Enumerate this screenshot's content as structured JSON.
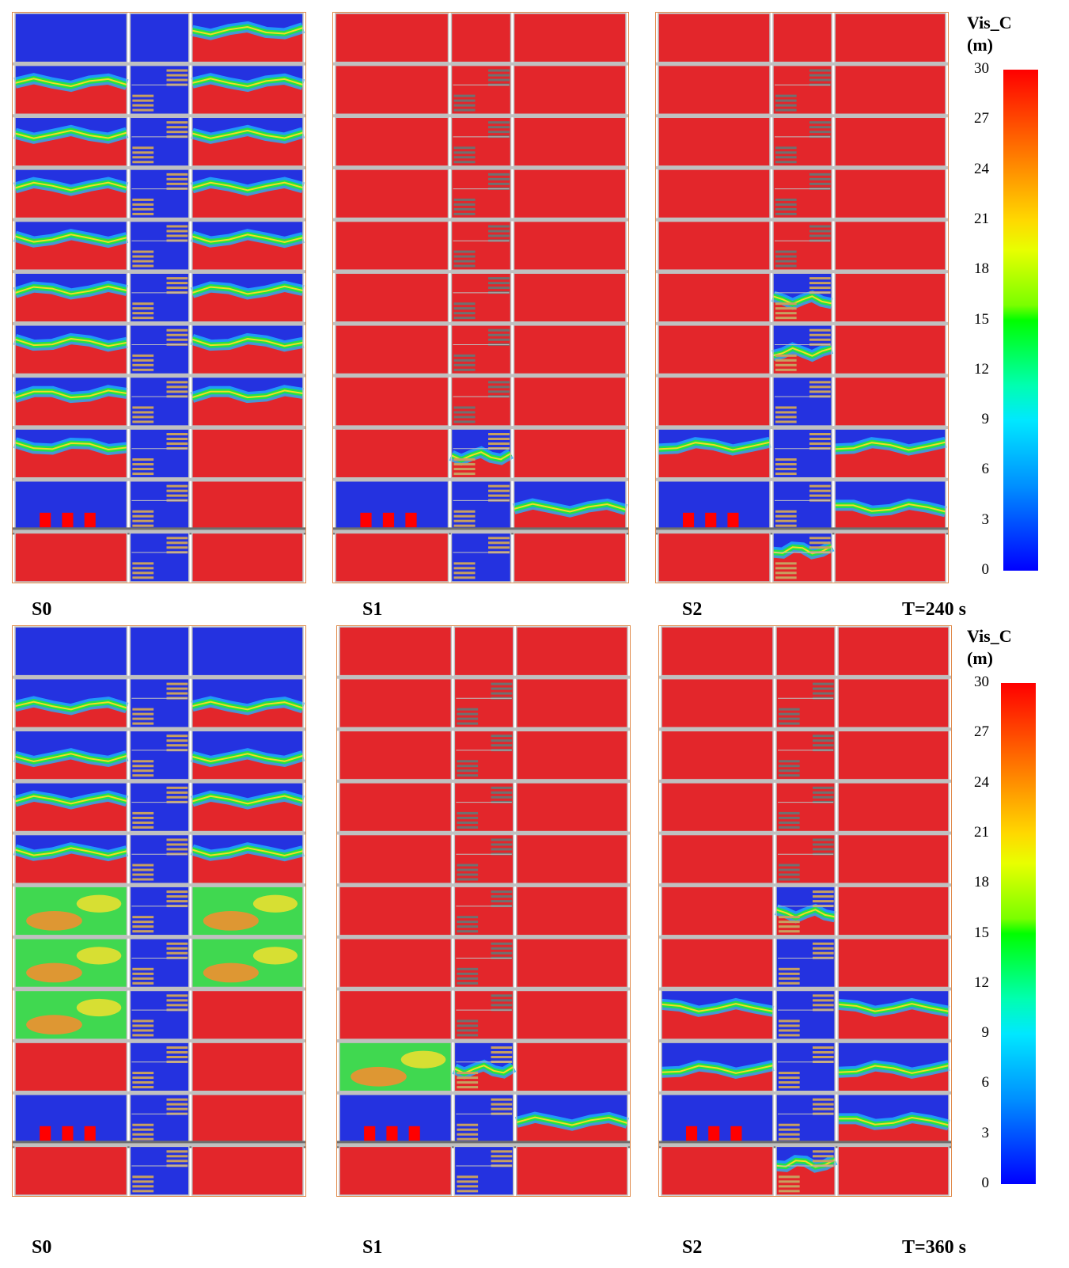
{
  "colors": {
    "smoke_clear": "#e3262b",
    "visible": "#2432e0",
    "fire": "#ff0000",
    "slab": "#6e6e6e",
    "wall": "#c0c0c0",
    "stair": "#c8a060"
  },
  "icons": {
    "fire_source": "fire-source-block-icon",
    "stair": "stair-flight-icon"
  },
  "rows": [
    {
      "time_label": "T=240 s",
      "colorbar": {
        "title_line1": "Vis_C",
        "title_line2": "(m)",
        "ticks": [
          "30",
          "27",
          "24",
          "21",
          "18",
          "15",
          "12",
          "9",
          "6",
          "3",
          "0"
        ]
      },
      "panels": [
        {
          "label": "S0",
          "floors": [
            {
              "L": "blue",
              "S": "blue",
              "R": "mix"
            },
            {
              "L": "mix",
              "S": "blue",
              "R": "mix"
            },
            {
              "L": "mix",
              "S": "blue",
              "R": "mix"
            },
            {
              "L": "mix",
              "S": "blue",
              "R": "mix"
            },
            {
              "L": "mix",
              "S": "blue",
              "R": "mix"
            },
            {
              "L": "mix",
              "S": "blue",
              "R": "mix"
            },
            {
              "L": "mix",
              "S": "blue",
              "R": "mix"
            },
            {
              "L": "mix",
              "S": "blue",
              "R": "mix"
            },
            {
              "L": "mix",
              "S": "blue",
              "R": "red"
            },
            {
              "L": "fire",
              "S": "blue",
              "R": "red"
            },
            {
              "L": "red",
              "S": "blue",
              "R": "red"
            }
          ]
        },
        {
          "label": "S1",
          "floors": [
            {
              "L": "red",
              "S": "red",
              "R": "red"
            },
            {
              "L": "red",
              "S": "red",
              "R": "red"
            },
            {
              "L": "red",
              "S": "red",
              "R": "red"
            },
            {
              "L": "red",
              "S": "red",
              "R": "red"
            },
            {
              "L": "red",
              "S": "red",
              "R": "red"
            },
            {
              "L": "red",
              "S": "red",
              "R": "red"
            },
            {
              "L": "red",
              "S": "red",
              "R": "red"
            },
            {
              "L": "red",
              "S": "red",
              "R": "red"
            },
            {
              "L": "red",
              "S": "mixb",
              "R": "red"
            },
            {
              "L": "fire",
              "S": "blue",
              "R": "mixb"
            },
            {
              "L": "red",
              "S": "blue",
              "R": "red"
            }
          ]
        },
        {
          "label": "S2",
          "floors": [
            {
              "L": "red",
              "S": "red",
              "R": "red"
            },
            {
              "L": "red",
              "S": "red",
              "R": "red"
            },
            {
              "L": "red",
              "S": "red",
              "R": "red"
            },
            {
              "L": "red",
              "S": "red",
              "R": "red"
            },
            {
              "L": "red",
              "S": "red",
              "R": "red"
            },
            {
              "L": "red",
              "S": "mixb",
              "R": "red"
            },
            {
              "L": "red",
              "S": "mixb",
              "R": "red"
            },
            {
              "L": "red",
              "S": "blue",
              "R": "red"
            },
            {
              "L": "mix",
              "S": "blue",
              "R": "mix"
            },
            {
              "L": "fire",
              "S": "blue",
              "R": "mixb"
            },
            {
              "L": "red",
              "S": "mix",
              "R": "red"
            }
          ]
        }
      ]
    },
    {
      "time_label": "T=360 s",
      "colorbar": {
        "title_line1": "Vis_C",
        "title_line2": "(m)",
        "ticks": [
          "30",
          "27",
          "24",
          "21",
          "18",
          "15",
          "12",
          "9",
          "6",
          "3",
          "0"
        ]
      },
      "panels": [
        {
          "label": "S0",
          "floors": [
            {
              "L": "blue",
              "S": "blue",
              "R": "blue"
            },
            {
              "L": "mixb",
              "S": "blue",
              "R": "mixb"
            },
            {
              "L": "mixb",
              "S": "blue",
              "R": "mixb"
            },
            {
              "L": "mix",
              "S": "blue",
              "R": "mix"
            },
            {
              "L": "mix",
              "S": "blue",
              "R": "mix"
            },
            {
              "L": "green",
              "S": "blue",
              "R": "green"
            },
            {
              "L": "green",
              "S": "blue",
              "R": "green"
            },
            {
              "L": "green",
              "S": "blue",
              "R": "red"
            },
            {
              "L": "red",
              "S": "blue",
              "R": "red"
            },
            {
              "L": "fire",
              "S": "blue",
              "R": "red"
            },
            {
              "L": "red",
              "S": "blue",
              "R": "red"
            }
          ]
        },
        {
          "label": "S1",
          "floors": [
            {
              "L": "red",
              "S": "red",
              "R": "red"
            },
            {
              "L": "red",
              "S": "red",
              "R": "red"
            },
            {
              "L": "red",
              "S": "red",
              "R": "red"
            },
            {
              "L": "red",
              "S": "red",
              "R": "red"
            },
            {
              "L": "red",
              "S": "red",
              "R": "red"
            },
            {
              "L": "red",
              "S": "red",
              "R": "red"
            },
            {
              "L": "red",
              "S": "red",
              "R": "red"
            },
            {
              "L": "red",
              "S": "red",
              "R": "red"
            },
            {
              "L": "green",
              "S": "mixb",
              "R": "red"
            },
            {
              "L": "fire",
              "S": "blue",
              "R": "mixb"
            },
            {
              "L": "red",
              "S": "blue",
              "R": "red"
            }
          ]
        },
        {
          "label": "S2",
          "floors": [
            {
              "L": "red",
              "S": "red",
              "R": "red"
            },
            {
              "L": "red",
              "S": "red",
              "R": "red"
            },
            {
              "L": "red",
              "S": "red",
              "R": "red"
            },
            {
              "L": "red",
              "S": "red",
              "R": "red"
            },
            {
              "L": "red",
              "S": "red",
              "R": "red"
            },
            {
              "L": "red",
              "S": "mixb",
              "R": "red"
            },
            {
              "L": "red",
              "S": "blue",
              "R": "red"
            },
            {
              "L": "mix",
              "S": "blue",
              "R": "mix"
            },
            {
              "L": "mixb",
              "S": "blue",
              "R": "mixb"
            },
            {
              "L": "fire",
              "S": "blue",
              "R": "mixb"
            },
            {
              "L": "red",
              "S": "mix",
              "R": "red"
            }
          ]
        }
      ]
    }
  ]
}
